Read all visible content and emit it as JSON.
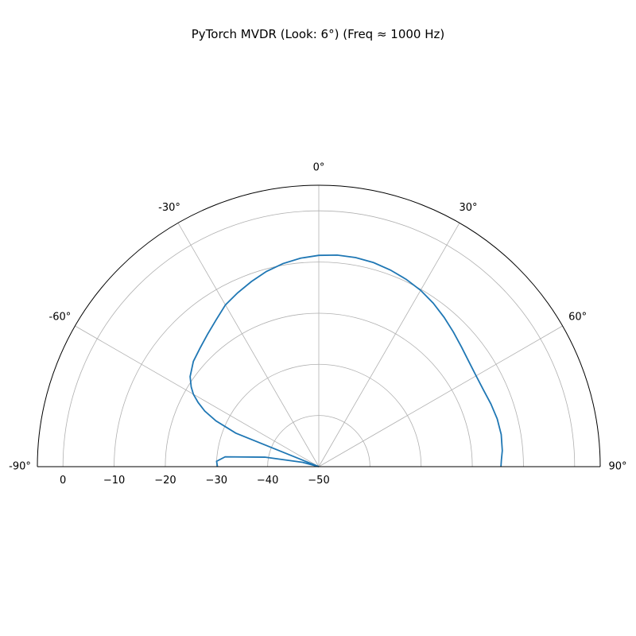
{
  "chart_data": {
    "type": "line",
    "subtype": "polar",
    "title": "PyTorch MVDR (Look: 6°) (Freq ≈ 1000 Hz)",
    "theta_range_deg": [
      -90,
      90
    ],
    "theta_zero": "top",
    "theta_direction": "clockwise",
    "theta_ticks": [
      -90,
      -60,
      -30,
      0,
      30,
      60,
      90
    ],
    "theta_tick_labels": [
      "-90°",
      "-60°",
      "-30°",
      "0°",
      "30°",
      "60°",
      "90°"
    ],
    "r_range": [
      -50,
      5
    ],
    "r_gridlines": [
      -40,
      -30,
      -20,
      -10,
      0
    ],
    "r_ticks": [
      0,
      -10,
      -20,
      -30,
      -40,
      -50
    ],
    "r_tick_labels": [
      "0",
      "−10",
      "−20",
      "−30",
      "−40",
      "−50"
    ],
    "grid": true,
    "series": [
      {
        "color": "#1f77b4",
        "theta": [
          -90,
          -87,
          -84,
          -80,
          -75,
          -70,
          -68,
          -66,
          -64,
          -62,
          -60,
          -58,
          -55,
          -50,
          -45,
          -40,
          -35,
          -30,
          -25,
          -20,
          -15,
          -10,
          -5,
          0,
          5,
          10,
          15,
          20,
          25,
          30,
          35,
          40,
          45,
          50,
          55,
          60,
          65,
          70,
          75,
          80,
          85,
          88,
          90
        ],
        "r": [
          -30.2,
          -30.0,
          -31.6,
          -39.3,
          -46.8,
          -50.0,
          -32.5,
          -28.0,
          -25.2,
          -23.3,
          -21.7,
          -20.6,
          -19.3,
          -18.0,
          -17.2,
          -16.2,
          -15.0,
          -13.5,
          -12.5,
          -11.5,
          -10.5,
          -9.7,
          -9.1,
          -8.7,
          -8.5,
          -8.5,
          -8.7,
          -9.1,
          -9.6,
          -10.2,
          -11.0,
          -11.9,
          -12.8,
          -13.6,
          -14.2,
          -14.5,
          -14.5,
          -14.2,
          -13.9,
          -13.8,
          -14.0,
          -14.3,
          -14.4
        ]
      }
    ]
  }
}
